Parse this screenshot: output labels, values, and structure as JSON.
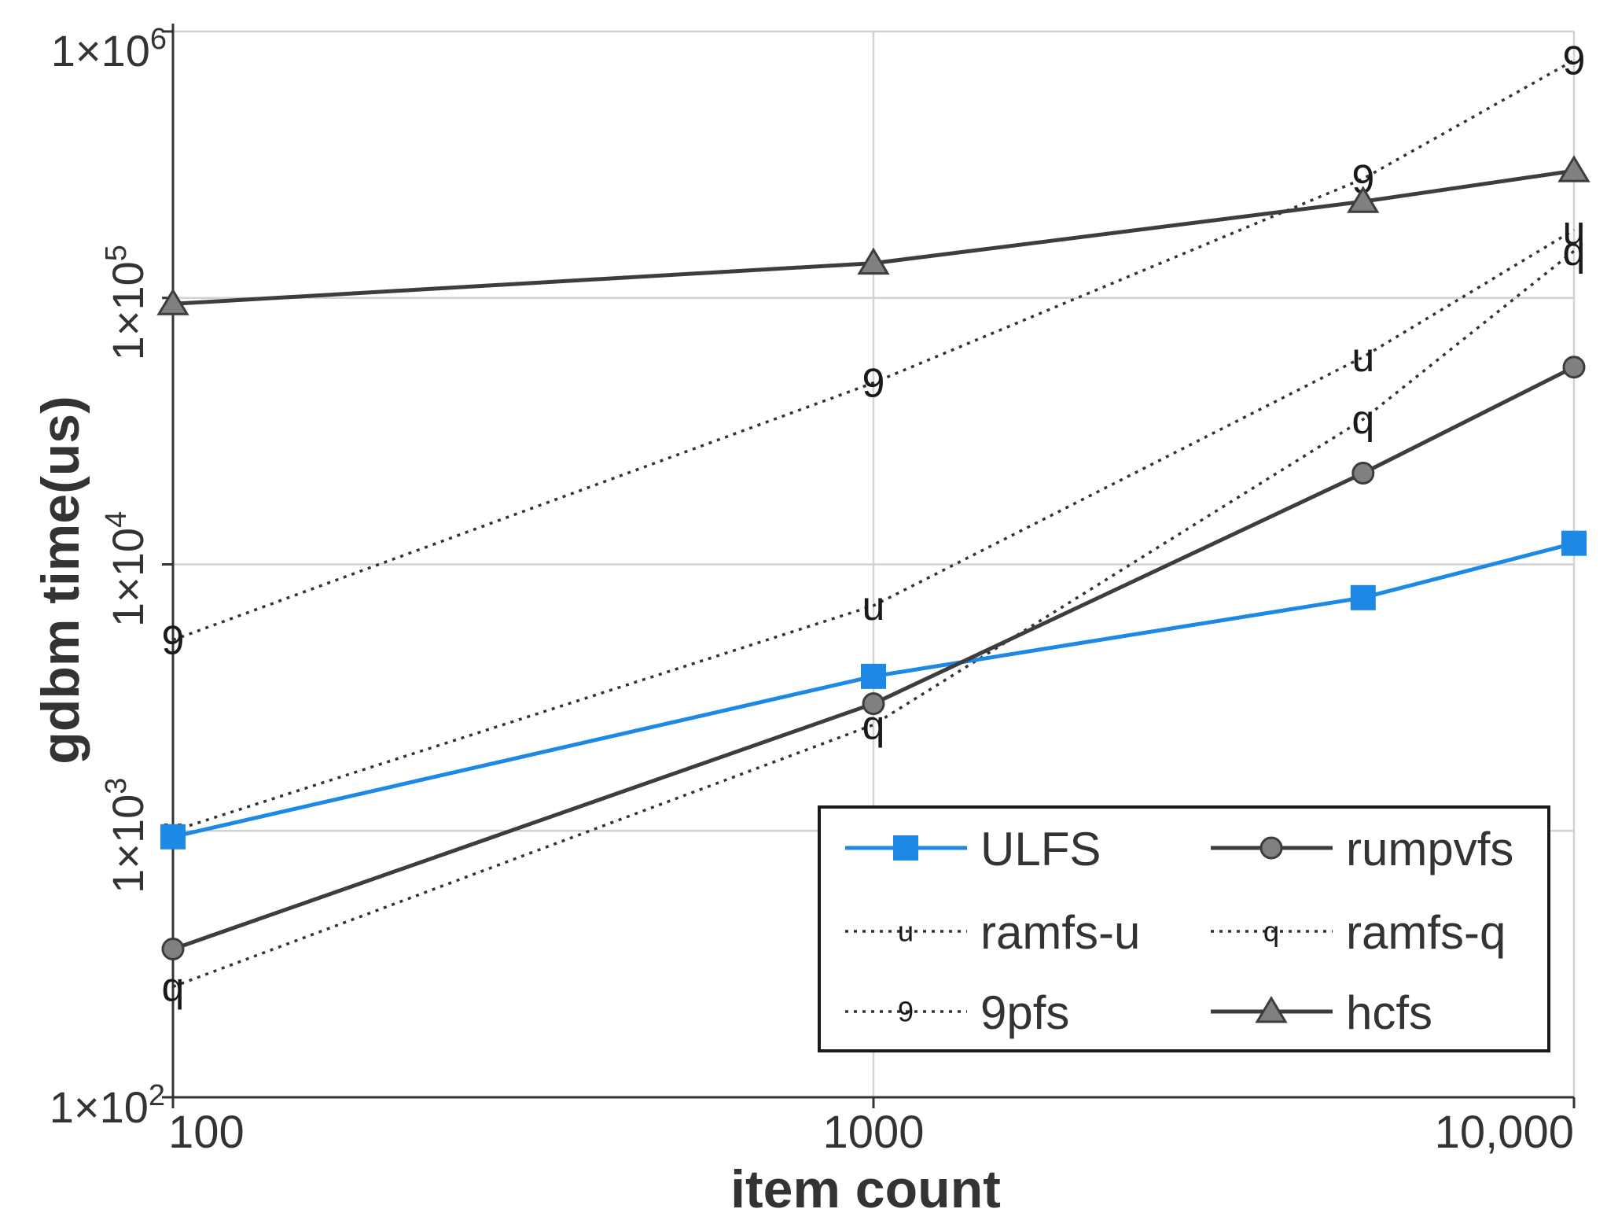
{
  "chart_data": {
    "type": "line",
    "title": "",
    "xlabel": "item count",
    "ylabel": "gdbm time(us)",
    "xscale": "log",
    "yscale": "log",
    "xlim": [
      100,
      10000
    ],
    "ylim": [
      100,
      1000000
    ],
    "grid": true,
    "legend_position": "bottom-right",
    "legend_columns": 2,
    "x_ticks": [
      {
        "value": 100,
        "label": "100"
      },
      {
        "value": 1000,
        "label": "1000"
      },
      {
        "value": 10000,
        "label": "10,000"
      }
    ],
    "y_ticks": [
      {
        "value": 100,
        "base": "1×10",
        "exp": "2"
      },
      {
        "value": 1000,
        "base": "1×10",
        "exp": "3"
      },
      {
        "value": 10000,
        "base": "1×10",
        "exp": "4"
      },
      {
        "value": 100000,
        "base": "1×10",
        "exp": "5"
      },
      {
        "value": 1000000,
        "base": "1×10",
        "exp": "6"
      }
    ],
    "series": [
      {
        "name": "ULFS",
        "color": "#1e88e5",
        "style": "solid",
        "marker": "square",
        "x": [
          100,
          1000,
          5000,
          10000
        ],
        "y": [
          950,
          3800,
          7500,
          12000
        ]
      },
      {
        "name": "rumpvfs",
        "color": "#3d3d3d",
        "style": "solid",
        "marker": "circle",
        "x": [
          100,
          1000,
          5000,
          10000
        ],
        "y": [
          360,
          3000,
          22000,
          55000
        ]
      },
      {
        "name": "ramfs-u",
        "color": "#333333",
        "style": "dotted",
        "marker": "glyph",
        "glyph": "u",
        "x": [
          100,
          1000,
          5000,
          10000
        ],
        "y": [
          1000,
          7000,
          60000,
          180000
        ]
      },
      {
        "name": "ramfs-q",
        "color": "#333333",
        "style": "dotted",
        "marker": "glyph",
        "glyph": "q",
        "x": [
          100,
          1000,
          5000,
          10000
        ],
        "y": [
          260,
          2500,
          35000,
          150000
        ]
      },
      {
        "name": "9pfs",
        "color": "#333333",
        "style": "dotted",
        "marker": "glyph",
        "glyph": "9",
        "x": [
          100,
          1000,
          5000,
          10000
        ],
        "y": [
          5200,
          48000,
          280000,
          780000
        ]
      },
      {
        "name": "hcfs",
        "color": "#3d3d3d",
        "style": "solid",
        "marker": "triangle",
        "x": [
          100,
          1000,
          5000,
          10000
        ],
        "y": [
          95000,
          135000,
          230000,
          300000
        ]
      }
    ]
  }
}
